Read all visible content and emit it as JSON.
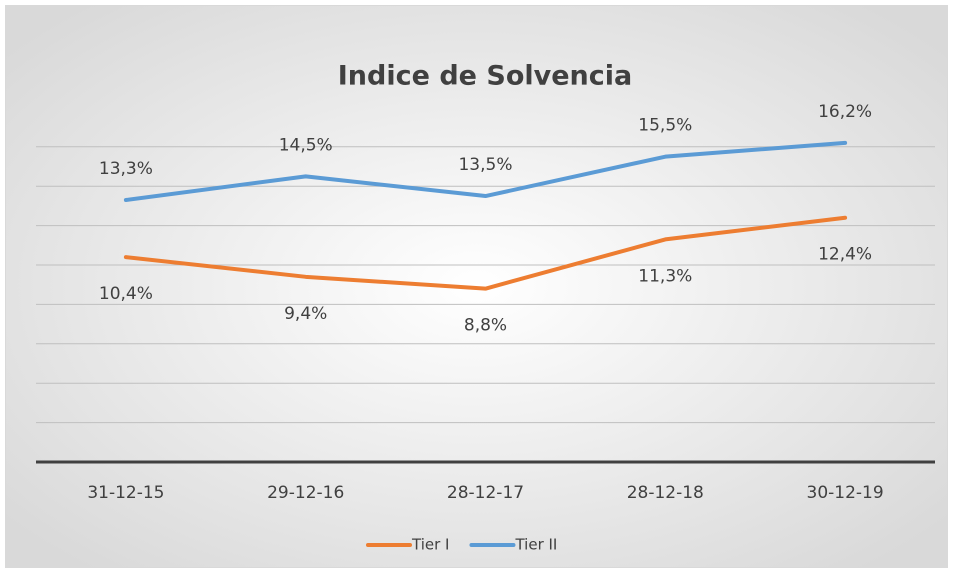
{
  "chart_data": {
    "type": "line",
    "title": "Indice de Solvencia",
    "categories": [
      "31-12-15",
      "29-12-16",
      "28-12-17",
      "28-12-18",
      "30-12-19"
    ],
    "series": [
      {
        "name": "Tier I",
        "color": "#ed7d31",
        "values": [
          10.4,
          9.4,
          8.8,
          11.3,
          12.4
        ],
        "value_labels": [
          "10,4%",
          "9,4%",
          "8,8%",
          "11,3%",
          "12,4%"
        ]
      },
      {
        "name": "Tier II",
        "color": "#5b9bd5",
        "values": [
          13.3,
          14.5,
          13.5,
          15.5,
          16.2
        ],
        "value_labels": [
          "13,3%",
          "14,5%",
          "13,5%",
          "15,5%",
          "16,2%"
        ]
      }
    ],
    "ylim": [
      0,
      18
    ],
    "yticks": [
      0,
      2,
      4,
      6,
      8,
      10,
      12,
      14,
      16
    ],
    "grid": true,
    "legend": "bottom"
  }
}
